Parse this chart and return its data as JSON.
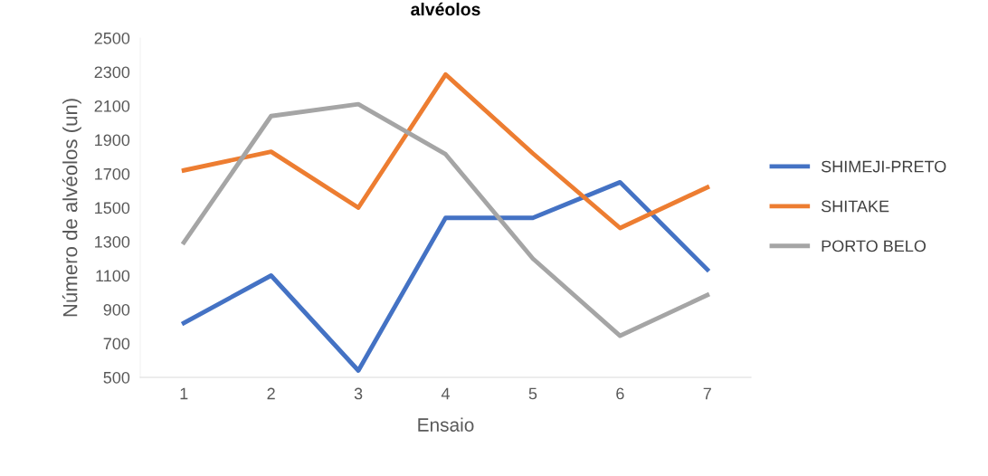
{
  "chart_data": {
    "type": "line",
    "title": "alvéolos",
    "xlabel": "Ensaio",
    "ylabel": "Número de alvéolos (un)",
    "categories": [
      "1",
      "2",
      "3",
      "4",
      "5",
      "6",
      "7"
    ],
    "series": [
      {
        "name": "SHIMEJI-PRETO",
        "color": "#4472c4",
        "values": [
          820,
          1100,
          540,
          1440,
          1440,
          1650,
          1135
        ]
      },
      {
        "name": "SHITAKE",
        "color": "#ed7d31",
        "values": [
          1720,
          1830,
          1500,
          2285,
          1820,
          1380,
          1620
        ]
      },
      {
        "name": "PORTO BELO",
        "color": "#a5a5a5",
        "values": [
          1295,
          2040,
          2110,
          1815,
          1200,
          745,
          985
        ]
      }
    ],
    "ylim": [
      500,
      2500
    ],
    "yticks": [
      500,
      700,
      900,
      1100,
      1300,
      1500,
      1700,
      1900,
      2100,
      2300,
      2500
    ],
    "grid": false,
    "legend": "right",
    "marker": "none",
    "line_style": "solid"
  }
}
